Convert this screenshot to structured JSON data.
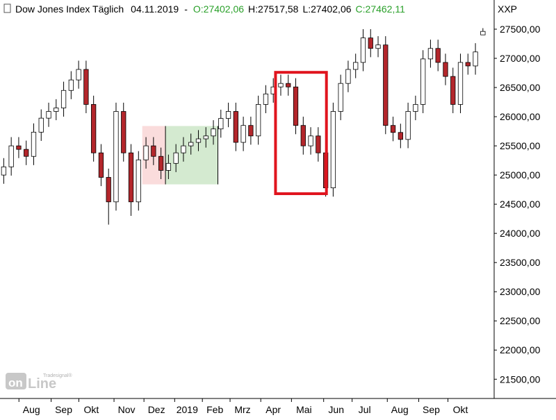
{
  "chart_data": {
    "type": "candlestick",
    "title": "Dow Jones Index Täglich",
    "date": "04.11.2019",
    "separator": "-",
    "quote_labels": [
      {
        "text": "O:27402,06",
        "color": "#2aa02a"
      },
      {
        "text": "H:27517,58",
        "color": "#000000"
      },
      {
        "text": "L:27402,06",
        "color": "#000000"
      },
      {
        "text": "C:27462,11",
        "color": "#2aa02a"
      }
    ],
    "symbol": "XXP",
    "watermark": {
      "brand": "Tradesignal®",
      "left": "on",
      "right": "Line"
    },
    "up_color": "#ffffff",
    "down_color": "#b3262b",
    "xlim": [
      -0.5,
      65.5
    ],
    "xticks": [
      {
        "value": 3.7,
        "label": "Aug"
      },
      {
        "value": 8.0,
        "label": "Sep"
      },
      {
        "value": 11.7,
        "label": "Okt"
      },
      {
        "value": 16.4,
        "label": "Nov"
      },
      {
        "value": 20.4,
        "label": "Dez"
      },
      {
        "value": 24.5,
        "label": "2019"
      },
      {
        "value": 28.2,
        "label": "Feb"
      },
      {
        "value": 31.9,
        "label": "Mrz"
      },
      {
        "value": 36.0,
        "label": "Apr"
      },
      {
        "value": 40.1,
        "label": "Mai"
      },
      {
        "value": 44.4,
        "label": "Jun"
      },
      {
        "value": 48.2,
        "label": "Jul"
      },
      {
        "value": 52.9,
        "label": "Aug"
      },
      {
        "value": 57.1,
        "label": "Sep"
      },
      {
        "value": 61.0,
        "label": "Okt"
      }
    ],
    "ylim": [
      21170,
      28000
    ],
    "yticks": [
      {
        "value": 21500,
        "label": "21500,00"
      },
      {
        "value": 22000,
        "label": "22000,00"
      },
      {
        "value": 22500,
        "label": "22500,00"
      },
      {
        "value": 23000,
        "label": "23000,00"
      },
      {
        "value": 23500,
        "label": "23500,00"
      },
      {
        "value": 24000,
        "label": "24000,00"
      },
      {
        "value": 24500,
        "label": "24500,00"
      },
      {
        "value": 25000,
        "label": "25000,00"
      },
      {
        "value": 25500,
        "label": "25500,00"
      },
      {
        "value": 26000,
        "label": "26000,00"
      },
      {
        "value": 26500,
        "label": "26500,00"
      },
      {
        "value": 27000,
        "label": "27000,00"
      },
      {
        "value": 27500,
        "label": "27500,00"
      }
    ],
    "grid": false,
    "open": [
      25000,
      25140,
      25500,
      25440,
      25320,
      25735,
      25975,
      26090,
      26150,
      26450,
      26630,
      26810,
      26210,
      25380,
      24960,
      24540,
      26090,
      25380,
      24540,
      25260,
      25500,
      25320,
      25080,
      25200,
      25380,
      25500,
      25560,
      25620,
      25670,
      25790,
      25970,
      26090,
      25560,
      25850,
      25670,
      26210,
      26390,
      26510,
      26570,
      26510,
      25850,
      25500,
      25670,
      25380,
      24780,
      26090,
      26570,
      26810,
      26930,
      27350,
      27170,
      27230,
      25850,
      25730,
      25610,
      26090,
      26210,
      26990,
      27170,
      26930,
      26690,
      26210,
      26930,
      26870,
      27402.06
    ],
    "high": [
      25290,
      25650,
      25650,
      25590,
      25885,
      26125,
      26240,
      26300,
      26600,
      26780,
      26960,
      26960,
      26360,
      25530,
      25110,
      26240,
      26240,
      25530,
      25410,
      25650,
      25650,
      25470,
      25350,
      25530,
      25650,
      25710,
      25770,
      25820,
      25940,
      26120,
      26240,
      26240,
      26000,
      26000,
      26360,
      26540,
      26660,
      26720,
      26720,
      26660,
      26000,
      25820,
      25820,
      25530,
      26240,
      26720,
      26960,
      27080,
      27500,
      27500,
      27380,
      27380,
      26000,
      25880,
      26240,
      26360,
      27140,
      27320,
      27320,
      27080,
      26840,
      27080,
      27080,
      27260,
      27517.58
    ],
    "low": [
      24850,
      24990,
      25290,
      25170,
      25170,
      25585,
      25825,
      25940,
      26000,
      26300,
      26480,
      26060,
      25230,
      24810,
      24150,
      24390,
      25230,
      24300,
      24390,
      25110,
      25170,
      24930,
      24930,
      25050,
      25230,
      25350,
      25410,
      25470,
      25520,
      25640,
      25820,
      25410,
      25410,
      25520,
      25520,
      26060,
      26240,
      26360,
      26360,
      25700,
      25350,
      25350,
      25230,
      24630,
      24630,
      25940,
      26420,
      26660,
      26780,
      27020,
      27020,
      25700,
      25580,
      25460,
      25460,
      25940,
      26060,
      26840,
      26780,
      26540,
      26060,
      26060,
      26720,
      26720,
      27402.06
    ],
    "close": [
      25140,
      25500,
      25440,
      25320,
      25735,
      25975,
      26090,
      26150,
      26450,
      26630,
      26810,
      26210,
      25380,
      24960,
      24540,
      26090,
      25380,
      24540,
      25260,
      25500,
      25320,
      25080,
      25200,
      25380,
      25500,
      25560,
      25620,
      25670,
      25790,
      25970,
      26090,
      25560,
      25850,
      25670,
      26210,
      26390,
      26510,
      26570,
      26510,
      25850,
      25500,
      25670,
      25380,
      24780,
      26090,
      26570,
      26810,
      26930,
      27350,
      27170,
      27230,
      25850,
      25730,
      25610,
      26090,
      26210,
      26990,
      27170,
      26930,
      26690,
      26210,
      26930,
      26870,
      27110,
      27462.11
    ],
    "shaded_regions": [
      {
        "x": [
          18.5,
          21.6
        ],
        "y": [
          24840,
          25840
        ],
        "color": "#fadcdc"
      },
      {
        "x": [
          21.6,
          28.6
        ],
        "y": [
          24840,
          25840
        ],
        "color": "#d4ead0"
      }
    ],
    "highlight_box": {
      "x": [
        36.3,
        43.1
      ],
      "y": [
        24680,
        26760
      ],
      "color": "#e0141e"
    }
  }
}
